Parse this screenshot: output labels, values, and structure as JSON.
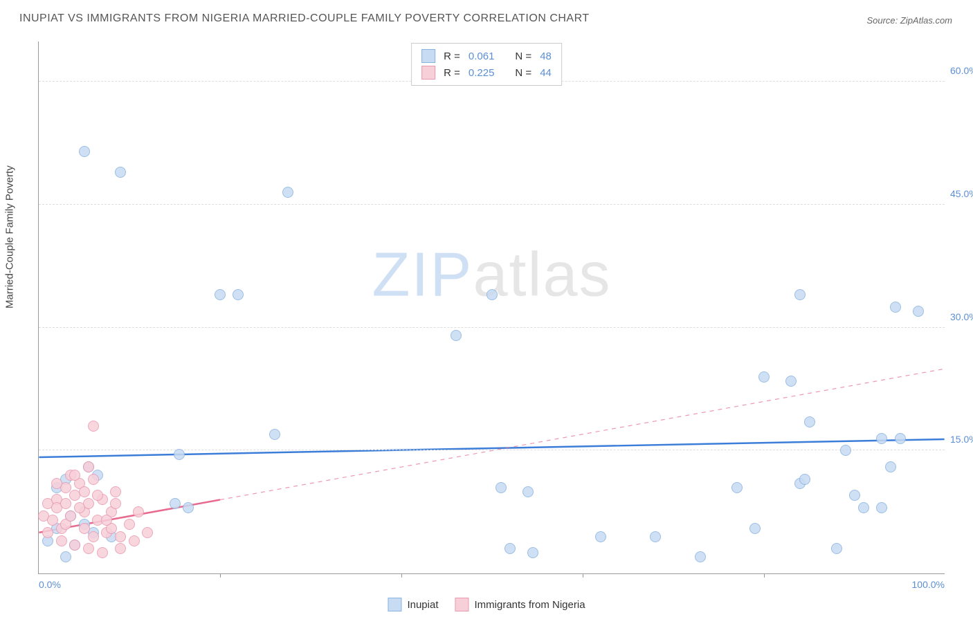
{
  "title": "INUPIAT VS IMMIGRANTS FROM NIGERIA MARRIED-COUPLE FAMILY POVERTY CORRELATION CHART",
  "source": "Source: ZipAtlas.com",
  "ylabel": "Married-Couple Family Poverty",
  "watermark_a": "ZIP",
  "watermark_b": "atlas",
  "chart": {
    "type": "scatter",
    "xlim": [
      0,
      100
    ],
    "ylim": [
      0,
      65
    ],
    "xticks": [
      {
        "pos": 0,
        "label": "0.0%"
      },
      {
        "pos": 100,
        "label": "100.0%"
      }
    ],
    "xtick_marks": [
      20,
      40,
      60,
      80
    ],
    "yticks": [
      {
        "pos": 15,
        "label": "15.0%"
      },
      {
        "pos": 30,
        "label": "30.0%"
      },
      {
        "pos": 45,
        "label": "45.0%"
      },
      {
        "pos": 60,
        "label": "60.0%"
      }
    ],
    "background_color": "#ffffff",
    "grid_color": "#dddddd",
    "axis_color": "#999999",
    "marker_radius": 8,
    "marker_stroke_width": 1,
    "series": [
      {
        "name": "Inupiat",
        "fill": "#c7dbf3",
        "stroke": "#8ab3e0",
        "r": 0.061,
        "n": 48,
        "trend": {
          "y_at_x0": 14.2,
          "y_at_x100": 16.4,
          "color": "#3b7dd8",
          "width": 2.5,
          "dash_after_x": 100
        },
        "points": [
          [
            5.0,
            51.5
          ],
          [
            9.0,
            49.0
          ],
          [
            27.5,
            46.5
          ],
          [
            2.0,
            10.5
          ],
          [
            5.5,
            13.0
          ],
          [
            20.0,
            34.0
          ],
          [
            22.0,
            34.0
          ],
          [
            50.0,
            34.0
          ],
          [
            84.0,
            34.0
          ],
          [
            94.5,
            32.5
          ],
          [
            97.0,
            32.0
          ],
          [
            46.0,
            29.0
          ],
          [
            26.0,
            17.0
          ],
          [
            15.5,
            14.5
          ],
          [
            3.0,
            11.5
          ],
          [
            80.0,
            24.0
          ],
          [
            83.0,
            23.5
          ],
          [
            85.0,
            18.5
          ],
          [
            93.0,
            16.5
          ],
          [
            95.0,
            16.5
          ],
          [
            89.0,
            15.0
          ],
          [
            94.0,
            13.0
          ],
          [
            51.0,
            10.5
          ],
          [
            54.0,
            10.0
          ],
          [
            77.0,
            10.5
          ],
          [
            84.0,
            11.0
          ],
          [
            84.5,
            11.5
          ],
          [
            90.0,
            9.5
          ],
          [
            91.0,
            8.0
          ],
          [
            93.0,
            8.0
          ],
          [
            52.0,
            3.0
          ],
          [
            54.5,
            2.5
          ],
          [
            62.0,
            4.5
          ],
          [
            68.0,
            4.5
          ],
          [
            73.0,
            2.0
          ],
          [
            79.0,
            5.5
          ],
          [
            88.0,
            3.0
          ],
          [
            2.0,
            5.5
          ],
          [
            3.5,
            7.0
          ],
          [
            5.0,
            6.0
          ],
          [
            16.5,
            8.0
          ],
          [
            15.0,
            8.5
          ],
          [
            6.0,
            5.0
          ],
          [
            8.0,
            4.5
          ],
          [
            4.0,
            3.5
          ],
          [
            3.0,
            2.0
          ],
          [
            1.0,
            4.0
          ],
          [
            6.5,
            12.0
          ]
        ]
      },
      {
        "name": "Immigrants from Nigeria",
        "fill": "#f7cfd9",
        "stroke": "#e99ab0",
        "r": 0.225,
        "n": 44,
        "trend": {
          "y_at_x0": 5.0,
          "y_at_x100": 25.0,
          "color": "#e86a8f",
          "width": 2.5,
          "dash_after_x": 20
        },
        "points": [
          [
            6.0,
            18.0
          ],
          [
            0.5,
            7.0
          ],
          [
            1.0,
            8.5
          ],
          [
            1.5,
            6.5
          ],
          [
            2.0,
            9.0
          ],
          [
            2.5,
            5.5
          ],
          [
            2.0,
            8.0
          ],
          [
            3.0,
            10.5
          ],
          [
            3.5,
            12.0
          ],
          [
            4.0,
            9.5
          ],
          [
            4.5,
            11.0
          ],
          [
            5.0,
            7.5
          ],
          [
            5.0,
            10.0
          ],
          [
            5.5,
            8.5
          ],
          [
            6.0,
            11.5
          ],
          [
            6.5,
            6.5
          ],
          [
            7.0,
            9.0
          ],
          [
            7.5,
            5.0
          ],
          [
            8.0,
            7.5
          ],
          [
            8.5,
            10.0
          ],
          [
            9.0,
            4.5
          ],
          [
            1.0,
            5.0
          ],
          [
            2.5,
            4.0
          ],
          [
            3.0,
            6.0
          ],
          [
            4.0,
            3.5
          ],
          [
            5.0,
            5.5
          ],
          [
            5.5,
            3.0
          ],
          [
            6.0,
            4.5
          ],
          [
            7.0,
            2.5
          ],
          [
            8.0,
            5.5
          ],
          [
            9.0,
            3.0
          ],
          [
            10.0,
            6.0
          ],
          [
            10.5,
            4.0
          ],
          [
            11.0,
            7.5
          ],
          [
            12.0,
            5.0
          ],
          [
            3.5,
            7.0
          ],
          [
            4.5,
            8.0
          ],
          [
            6.5,
            9.5
          ],
          [
            7.5,
            6.5
          ],
          [
            8.5,
            8.5
          ],
          [
            2.0,
            11.0
          ],
          [
            4.0,
            12.0
          ],
          [
            5.5,
            13.0
          ],
          [
            3.0,
            8.5
          ]
        ]
      }
    ],
    "legend_top": {
      "border": "#cccccc",
      "bg": "#ffffff",
      "label_R": "R =",
      "label_N": "N =",
      "val_color": "#5b8fd6",
      "fontsize": 15
    },
    "legend_bottom": {
      "items": [
        "Inupiat",
        "Immigrants from Nigeria"
      ],
      "fontsize": 15
    },
    "tick_color": "#5b8fd6",
    "label_color": "#444444",
    "title_color": "#555555"
  }
}
